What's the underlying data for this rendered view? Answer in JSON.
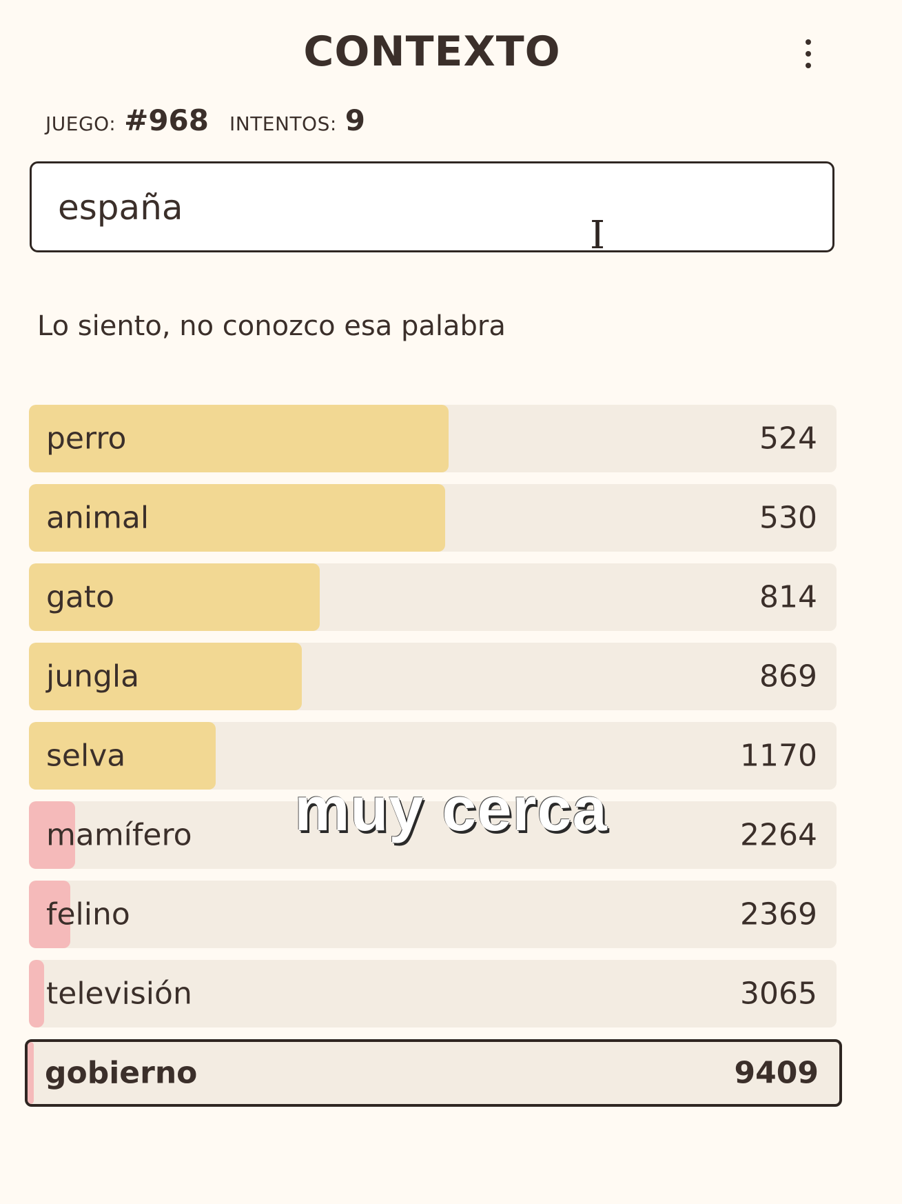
{
  "header": {
    "title": "CONTEXTO",
    "menu_icon": "kebab-menu-icon"
  },
  "stats": {
    "game_label": "JUEGO:",
    "game_value": "#968",
    "attempts_label": "INTENTOS:",
    "attempts_value": "9"
  },
  "search": {
    "value": "españa"
  },
  "message": "Lo siento, no conozco esa palabra",
  "colors": {
    "close": "#f2d893",
    "far": "#f5baba",
    "row_bg": "#f3ece2",
    "page_bg": "#fffaf3"
  },
  "guesses": [
    {
      "word": "perro",
      "rank": "524",
      "proximity": 0.52,
      "tier": "close"
    },
    {
      "word": "animal",
      "rank": "530",
      "proximity": 0.515,
      "tier": "close"
    },
    {
      "word": "gato",
      "rank": "814",
      "proximity": 0.36,
      "tier": "close"
    },
    {
      "word": "jungla",
      "rank": "869",
      "proximity": 0.338,
      "tier": "close"
    },
    {
      "word": "selva",
      "rank": "1170",
      "proximity": 0.231,
      "tier": "close"
    },
    {
      "word": "mamífero",
      "rank": "2264",
      "proximity": 0.057,
      "tier": "far"
    },
    {
      "word": "felino",
      "rank": "2369",
      "proximity": 0.051,
      "tier": "far"
    },
    {
      "word": "televisión",
      "rank": "3065",
      "proximity": 0.019,
      "tier": "far"
    }
  ],
  "current_guess": {
    "word": "gobierno",
    "rank": "9409",
    "proximity": 0.008,
    "tier": "far"
  },
  "overlay_caption": "muy cerca"
}
